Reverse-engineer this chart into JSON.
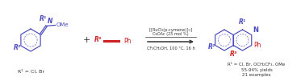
{
  "bg_color": "#ffffff",
  "blue_color": "#4a4abf",
  "red_color": "#cc2222",
  "black_color": "#333333",
  "reagent_line1": "[{RuCl₂(p-cymene)}₂]",
  "reagent_line2": "CsOAc (25 mol %)",
  "reagent_line3": "CF₃CH₂OH, 100 °C, 16 h",
  "reactant1_r1": "R¹",
  "reactant1_r2": "R²",
  "reactant1_label": "R¹ = Cl, Br",
  "alkyne_r3": "R³",
  "alkyne_ph": "Ph",
  "product_r1": "R¹",
  "product_r2": "R²",
  "product_r3": "R³",
  "product_ph": "Ph",
  "product_n": "N",
  "product_label1": "R¹ = Cl, Br, OCH₂CF₃, OMe",
  "product_label2": "55-94% yields",
  "product_label3": "21 examples",
  "plus_sign": "+",
  "figsize": [
    3.78,
    1.01
  ],
  "dpi": 100
}
